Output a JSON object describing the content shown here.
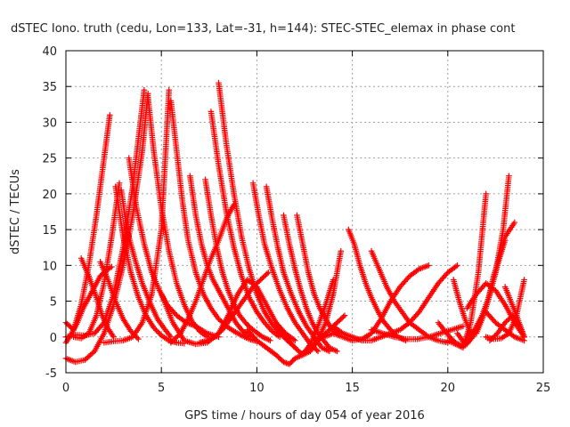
{
  "chart_data": {
    "type": "scatter",
    "title": "dSTEC Iono. truth (cedu, Lon=133, Lat=-31, h=144): STEC-STEC_elemax in phase cont",
    "xlabel": "GPS time / hours of day 054 of year 2016",
    "ylabel": "dSTEC  / TECUs",
    "xlim": [
      0,
      25
    ],
    "ylim": [
      -5,
      40
    ],
    "xticks": [
      0,
      5,
      10,
      15,
      20,
      25
    ],
    "yticks": [
      -5,
      0,
      5,
      10,
      15,
      20,
      25,
      30,
      35,
      40
    ],
    "grid": true,
    "marker": "+",
    "color": "#ff0000",
    "series": [
      {
        "x": [
          0.0,
          0.4,
          0.8,
          1.2,
          1.6,
          2.0,
          2.3
        ],
        "y": [
          2.0,
          1.0,
          4.5,
          10.0,
          17.0,
          25.0,
          31.0
        ]
      },
      {
        "x": [
          0.0,
          0.5,
          1.0,
          1.5,
          2.0,
          2.5,
          3.0,
          3.5,
          4.0,
          4.3
        ],
        "y": [
          -3.0,
          -3.5,
          -3.2,
          -2.0,
          0.5,
          4.5,
          10.0,
          17.0,
          26.0,
          34.0
        ]
      },
      {
        "x": [
          0.0,
          0.5,
          1.0,
          1.5,
          2.0,
          2.5,
          3.0,
          3.5,
          4.1
        ],
        "y": [
          0.0,
          0.3,
          0.2,
          0.5,
          2.0,
          6.0,
          12.5,
          21.0,
          34.5
        ]
      },
      {
        "x": [
          0.0,
          0.3,
          0.6,
          0.9,
          1.2,
          1.5,
          1.8,
          2.1,
          2.4
        ],
        "y": [
          -0.8,
          0.5,
          2.0,
          4.0,
          5.5,
          7.0,
          8.5,
          9.3,
          9.8
        ]
      },
      {
        "x": [
          0.4,
          0.8,
          1.2,
          1.6,
          2.0,
          2.4,
          2.8
        ],
        "y": [
          0.0,
          -0.2,
          0.5,
          3.0,
          7.5,
          14.0,
          21.5
        ]
      },
      {
        "x": [
          0.8,
          1.2,
          1.6,
          1.9,
          2.2,
          2.5
        ],
        "y": [
          11.0,
          8.5,
          5.5,
          3.0,
          1.2,
          0.0
        ]
      },
      {
        "x": [
          1.8,
          2.2,
          2.6,
          3.0,
          3.4,
          3.8
        ],
        "y": [
          10.5,
          8.0,
          5.0,
          2.5,
          0.8,
          -0.3
        ]
      },
      {
        "x": [
          2.6,
          3.0,
          3.4,
          3.8,
          4.2,
          4.6,
          5.0,
          5.4,
          5.8,
          6.2
        ],
        "y": [
          21.0,
          14.0,
          9.0,
          5.5,
          3.0,
          1.3,
          0.2,
          -0.5,
          -0.8,
          -0.9
        ]
      },
      {
        "x": [
          2.9,
          3.2,
          3.6,
          4.0,
          4.4,
          4.8,
          5.2,
          5.5
        ],
        "y": [
          20.5,
          15.0,
          11.0,
          7.5,
          4.8,
          2.5,
          1.0,
          0.0
        ]
      },
      {
        "x": [
          3.3,
          3.7,
          4.1,
          4.5,
          4.9,
          5.3,
          5.8,
          6.3,
          6.8,
          7.4,
          8.0
        ],
        "y": [
          25.0,
          18.0,
          13.0,
          9.0,
          6.5,
          4.5,
          3.0,
          2.0,
          1.5,
          0.5,
          0.0
        ]
      },
      {
        "x": [
          2.0,
          2.5,
          3.0,
          3.5,
          4.0,
          4.5,
          5.0,
          5.4
        ],
        "y": [
          -0.8,
          -0.6,
          -0.5,
          0.0,
          2.0,
          6.0,
          15.0,
          34.5
        ]
      },
      {
        "x": [
          4.3,
          4.6,
          5.0,
          5.4,
          5.8,
          6.2,
          6.6,
          7.0,
          7.4
        ],
        "y": [
          33.5,
          26.0,
          18.0,
          12.0,
          7.5,
          4.5,
          2.2,
          0.8,
          0.0
        ]
      },
      {
        "x": [
          5.5,
          5.8,
          6.1,
          6.4,
          6.8,
          7.2,
          7.6,
          8.0,
          8.4,
          8.8,
          9.2,
          9.6,
          10.0
        ],
        "y": [
          33.0,
          26.0,
          19.0,
          13.5,
          9.0,
          6.0,
          4.0,
          2.5,
          1.5,
          0.8,
          0.2,
          -0.3,
          -0.6
        ]
      },
      {
        "x": [
          5.0,
          5.6,
          6.2,
          6.8,
          7.4,
          8.0,
          8.5,
          9.0,
          9.5,
          10.0,
          10.5,
          11.0,
          11.5,
          12.0
        ],
        "y": [
          6.0,
          2.0,
          -0.5,
          -1.0,
          -0.8,
          0.5,
          3.0,
          6.0,
          8.0,
          7.0,
          4.5,
          2.0,
          0.5,
          -0.5
        ]
      },
      {
        "x": [
          6.5,
          6.8,
          7.1,
          7.4,
          7.7,
          8.0,
          8.3,
          8.6,
          8.9,
          9.2,
          9.6
        ],
        "y": [
          22.5,
          17.0,
          13.0,
          10.0,
          8.0,
          6.5,
          5.0,
          3.5,
          2.0,
          1.0,
          0.0
        ]
      },
      {
        "x": [
          7.3,
          7.6,
          7.9,
          8.2,
          8.5,
          8.8,
          9.1,
          9.4,
          9.7,
          10.0,
          10.3,
          10.7
        ],
        "y": [
          22.0,
          17.0,
          12.5,
          9.0,
          6.5,
          4.5,
          3.0,
          2.0,
          1.2,
          0.6,
          0.0,
          -0.5
        ]
      },
      {
        "x": [
          7.6,
          8.0,
          8.4,
          8.8,
          9.2,
          9.6,
          10.0,
          10.4,
          10.8,
          11.2
        ],
        "y": [
          31.5,
          24.0,
          17.5,
          12.5,
          8.5,
          5.5,
          3.5,
          2.0,
          0.8,
          0.0
        ]
      },
      {
        "x": [
          8.0,
          8.4,
          8.8,
          9.2,
          9.6,
          10.0,
          10.4,
          10.8,
          11.2,
          11.6,
          12.0
        ],
        "y": [
          35.5,
          27.0,
          20.0,
          14.0,
          9.5,
          6.0,
          3.5,
          1.8,
          0.5,
          -0.5,
          -1.5
        ]
      },
      {
        "x": [
          5.5,
          6.0,
          6.4,
          6.8,
          7.2,
          7.6,
          8.0,
          8.4,
          8.8
        ],
        "y": [
          -0.8,
          0.5,
          2.5,
          5.0,
          8.0,
          11.0,
          13.5,
          16.5,
          18.5
        ]
      },
      {
        "x": [
          7.0,
          7.4,
          7.8,
          8.2,
          8.6,
          9.0,
          9.4,
          9.8,
          10.2,
          10.6
        ],
        "y": [
          -0.8,
          -0.5,
          0.0,
          1.0,
          2.5,
          4.0,
          5.5,
          7.0,
          8.0,
          9.0
        ]
      },
      {
        "x": [
          9.8,
          10.1,
          10.4,
          10.8,
          11.2,
          11.6,
          12.0,
          12.4,
          12.8,
          13.2
        ],
        "y": [
          21.5,
          17.0,
          13.0,
          9.5,
          6.5,
          4.0,
          2.0,
          0.5,
          -1.0,
          -2.0
        ]
      },
      {
        "x": [
          10.5,
          10.8,
          11.1,
          11.4,
          11.8,
          12.2,
          12.6,
          13.0,
          13.4,
          13.8
        ],
        "y": [
          21.0,
          16.5,
          12.5,
          9.0,
          6.0,
          3.5,
          1.5,
          0.0,
          -1.5,
          -2.0
        ]
      },
      {
        "x": [
          11.4,
          11.7,
          12.0,
          12.3,
          12.6,
          12.9,
          13.2,
          13.5,
          13.8,
          14.2
        ],
        "y": [
          17.0,
          13.0,
          9.5,
          6.5,
          4.0,
          2.0,
          0.5,
          -0.5,
          -1.5,
          -2.0
        ]
      },
      {
        "x": [
          12.1,
          12.4,
          12.7,
          13.0,
          13.3,
          13.6,
          13.9,
          14.2
        ],
        "y": [
          17.0,
          13.0,
          9.0,
          6.0,
          4.0,
          2.5,
          1.2,
          0.5
        ]
      },
      {
        "x": [
          9.5,
          10.0,
          10.5,
          11.0,
          11.4,
          11.7,
          12.0,
          12.4,
          12.8,
          13.2,
          13.6,
          14.0
        ],
        "y": [
          1.0,
          -0.5,
          -1.5,
          -2.5,
          -3.5,
          -3.8,
          -3.0,
          -2.5,
          -1.0,
          1.5,
          4.5,
          8.0
        ]
      },
      {
        "x": [
          11.0,
          11.5,
          12.0,
          12.4,
          12.8,
          13.2,
          13.6,
          14.0,
          14.4
        ],
        "y": [
          2.0,
          0.0,
          -1.5,
          -2.5,
          -2.0,
          -0.5,
          2.0,
          6.0,
          12.0
        ]
      },
      {
        "x": [
          12.5,
          13.0,
          13.4,
          13.8,
          14.2,
          14.6
        ],
        "y": [
          -2.0,
          -1.0,
          0.0,
          1.0,
          2.0,
          3.0
        ]
      },
      {
        "x": [
          14.8,
          15.1,
          15.4,
          15.7,
          16.0,
          16.3,
          16.6,
          17.0,
          17.4,
          17.8
        ],
        "y": [
          15.0,
          13.0,
          10.0,
          7.5,
          5.5,
          3.8,
          2.3,
          1.0,
          0.0,
          -0.5
        ]
      },
      {
        "x": [
          13.0,
          13.5,
          14.0,
          14.5,
          15.0,
          15.5,
          16.0,
          16.5,
          17.0,
          17.5,
          18.0,
          18.5,
          19.0
        ],
        "y": [
          -0.5,
          0.0,
          0.5,
          0.0,
          -0.5,
          -0.3,
          0.5,
          2.5,
          5.0,
          7.0,
          8.5,
          9.5,
          10.0
        ]
      },
      {
        "x": [
          16.0,
          16.4,
          16.8,
          17.2,
          17.6,
          18.0,
          18.5,
          19.0,
          19.5,
          20.0
        ],
        "y": [
          12.0,
          9.5,
          7.0,
          5.0,
          3.5,
          2.0,
          1.0,
          0.0,
          -0.5,
          -0.8
        ]
      },
      {
        "x": [
          14.0,
          14.5,
          15.0,
          15.5,
          16.0,
          16.5,
          17.0,
          17.5,
          18.0,
          18.5,
          19.0,
          19.5,
          20.0,
          20.5
        ],
        "y": [
          1.5,
          0.5,
          0.0,
          -0.5,
          -0.5,
          0.0,
          0.5,
          1.0,
          2.0,
          3.5,
          5.5,
          7.5,
          9.0,
          10.0
        ]
      },
      {
        "x": [
          16.0,
          16.6,
          17.2,
          17.8,
          18.4,
          19.0,
          19.6,
          20.2,
          20.8
        ],
        "y": [
          1.0,
          0.5,
          0.0,
          -0.3,
          -0.3,
          0.0,
          0.5,
          1.0,
          1.5
        ]
      },
      {
        "x": [
          19.5,
          19.8,
          20.1,
          20.4,
          20.7,
          21.0,
          21.3
        ],
        "y": [
          2.0,
          1.0,
          0.0,
          -0.8,
          -1.2,
          -1.0,
          0.0
        ]
      },
      {
        "x": [
          20.3,
          20.6,
          20.9,
          21.2
        ],
        "y": [
          8.0,
          5.0,
          2.5,
          0.5
        ]
      },
      {
        "x": [
          20.0,
          20.4,
          20.8,
          21.2,
          21.6,
          22.0
        ],
        "y": [
          -0.5,
          -1.0,
          -1.5,
          2.0,
          9.0,
          20.0
        ]
      },
      {
        "x": [
          20.5,
          20.9,
          21.3,
          21.7,
          22.1,
          22.5,
          22.9,
          23.2
        ],
        "y": [
          0.5,
          -1.0,
          0.0,
          2.0,
          5.0,
          9.0,
          15.0,
          22.5
        ]
      },
      {
        "x": [
          21.0,
          21.4,
          21.8,
          22.2,
          22.6,
          23.0,
          23.5
        ],
        "y": [
          0.0,
          1.0,
          3.0,
          6.0,
          10.0,
          14.0,
          16.0
        ]
      },
      {
        "x": [
          21.5,
          21.8,
          22.1,
          22.4,
          22.7,
          23.0
        ],
        "y": [
          0.5,
          2.5,
          5.0,
          8.5,
          11.0,
          13.5
        ]
      },
      {
        "x": [
          22.0,
          22.4,
          22.8,
          23.2,
          23.6,
          24.0
        ],
        "y": [
          0.0,
          -0.3,
          -0.2,
          0.5,
          3.0,
          8.0
        ]
      },
      {
        "x": [
          21.0,
          21.5,
          22.0,
          22.5,
          23.0,
          23.5,
          24.0
        ],
        "y": [
          4.0,
          6.0,
          7.5,
          6.5,
          4.5,
          2.0,
          0.0
        ]
      },
      {
        "x": [
          22.0,
          22.5,
          23.0,
          23.5,
          24.0
        ],
        "y": [
          3.5,
          2.0,
          1.0,
          0.0,
          -0.5
        ]
      },
      {
        "x": [
          23.0,
          23.3,
          23.6,
          24.0
        ],
        "y": [
          7.0,
          5.0,
          3.0,
          0.0
        ]
      },
      {
        "x": [
          22.2,
          22.6,
          23.0,
          23.4,
          23.8,
          24.0
        ],
        "y": [
          -0.5,
          0.5,
          2.0,
          3.0,
          1.5,
          0.0
        ]
      }
    ]
  }
}
